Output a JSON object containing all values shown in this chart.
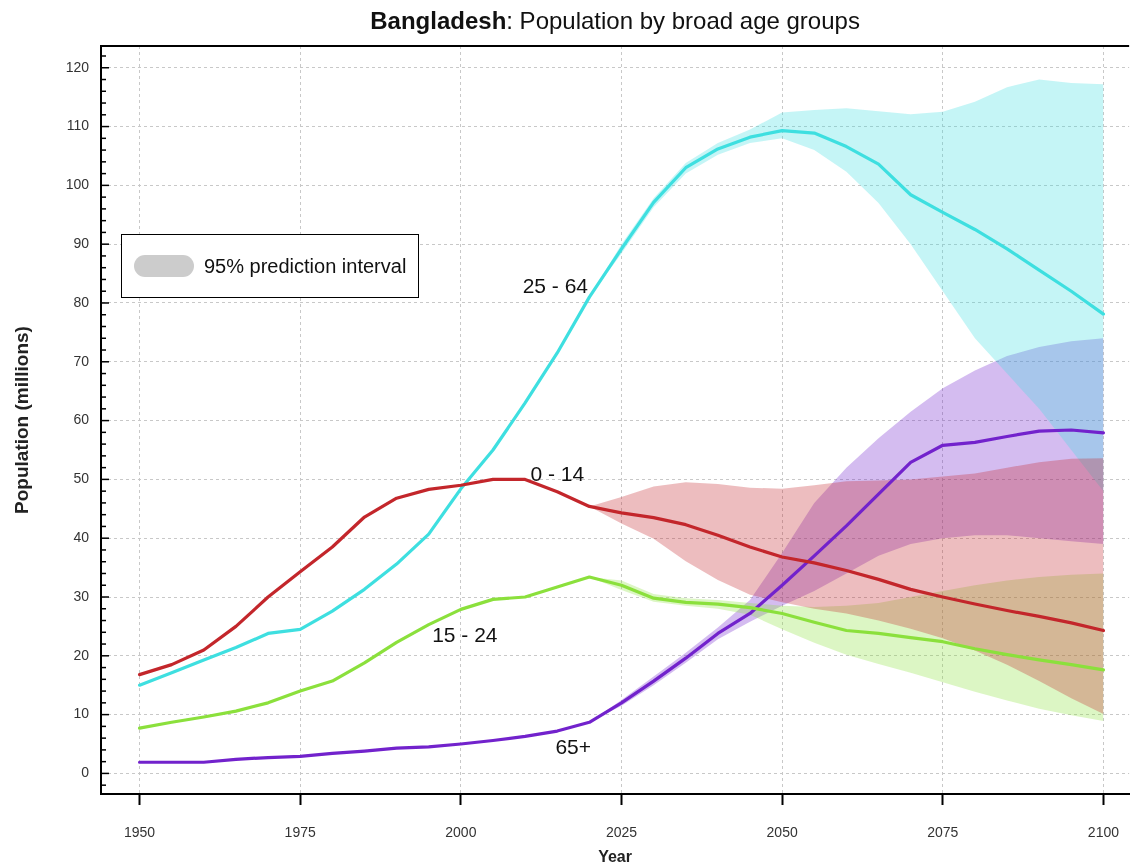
{
  "chart_data": {
    "type": "line",
    "title": "Bangladesh: Population by broad age groups",
    "xlabel": "Year",
    "ylabel": "Population (millions)",
    "x": [
      1950,
      1955,
      1960,
      1965,
      1970,
      1975,
      1980,
      1985,
      1990,
      1995,
      2000,
      2005,
      2010,
      2015,
      2020,
      2025,
      2030,
      2035,
      2040,
      2045,
      2050,
      2055,
      2060,
      2065,
      2070,
      2075,
      2080,
      2085,
      2090,
      2095,
      2100
    ],
    "series": [
      {
        "name": "0 - 14",
        "color": "#c3262b",
        "values": [
          16.8,
          18.5,
          21,
          25,
          30,
          34.3,
          38.5,
          43.6,
          46.8,
          48.3,
          49,
          50,
          50,
          47.9,
          45.4,
          44.3,
          43.5,
          42.3,
          40.5,
          38.5,
          36.8,
          35.8,
          34.5,
          33,
          31.3,
          30,
          28.8,
          27.7,
          26.7,
          25.6,
          24.3
        ],
        "upper": [
          null,
          null,
          null,
          null,
          null,
          null,
          null,
          null,
          null,
          null,
          null,
          null,
          null,
          null,
          45.4,
          47,
          48.8,
          49.5,
          49.2,
          48.6,
          48.4,
          49,
          49.7,
          49.8,
          50,
          50.5,
          51,
          52,
          52.9,
          53.5,
          53.6
        ],
        "lower": [
          null,
          null,
          null,
          null,
          null,
          null,
          null,
          null,
          null,
          null,
          null,
          null,
          null,
          null,
          45.4,
          42.5,
          39.9,
          36.1,
          32.9,
          30.4,
          29.1,
          28,
          27.2,
          26,
          24.6,
          23,
          20.9,
          18.5,
          15.7,
          12.8,
          10.1
        ]
      },
      {
        "name": "15 - 24",
        "color": "#8be03c",
        "values": [
          7.7,
          8.7,
          9.6,
          10.6,
          12,
          14,
          15.7,
          18.8,
          22.3,
          25.3,
          27.9,
          29.6,
          30,
          31.7,
          33.4,
          32,
          29.8,
          29.1,
          28.8,
          28.2,
          27.2,
          25.7,
          24.3,
          23.8,
          23.1,
          22.4,
          21.2,
          20.2,
          19.3,
          18.5,
          17.6
        ],
        "upper": [
          null,
          null,
          null,
          null,
          null,
          null,
          null,
          null,
          null,
          null,
          null,
          null,
          null,
          null,
          33.4,
          32.8,
          30.5,
          29.8,
          29.5,
          29,
          28.5,
          28.3,
          28.5,
          29,
          30,
          31,
          32,
          32.8,
          33.4,
          33.8,
          34
        ],
        "lower": [
          null,
          null,
          null,
          null,
          null,
          null,
          null,
          null,
          null,
          null,
          null,
          null,
          null,
          null,
          33.4,
          31.2,
          29.2,
          28.5,
          28,
          27,
          24.5,
          22.2,
          20.2,
          18.6,
          17.1,
          15.5,
          13.9,
          12.4,
          11,
          9.9,
          8.9
        ]
      },
      {
        "name": "25 - 64",
        "color": "#3edfe0",
        "values": [
          15,
          17.1,
          19.3,
          21.4,
          23.8,
          24.5,
          27.6,
          31.3,
          35.6,
          40.7,
          48.4,
          55,
          63,
          71.5,
          81,
          89.2,
          97.1,
          103,
          106.2,
          108.2,
          109.3,
          108.9,
          106.6,
          103.6,
          98.4,
          95.4,
          92.5,
          89.2,
          85.6,
          82,
          78.1
        ],
        "upper": [
          null,
          null,
          null,
          null,
          null,
          null,
          null,
          null,
          null,
          null,
          null,
          null,
          null,
          null,
          81,
          90,
          97.8,
          103.8,
          107.2,
          109.5,
          112.4,
          112.8,
          113.1,
          112.6,
          112.1,
          112.5,
          114.2,
          116.7,
          118,
          117.4,
          117.2
        ],
        "lower": [
          null,
          null,
          null,
          null,
          null,
          null,
          null,
          null,
          null,
          null,
          null,
          null,
          null,
          null,
          81,
          88.4,
          96.3,
          102,
          105.2,
          107.2,
          108,
          106,
          102.3,
          97,
          90,
          82,
          74,
          68,
          62,
          55,
          48
        ]
      },
      {
        "name": "65+",
        "color": "#7222cc",
        "values": [
          1.9,
          1.9,
          1.9,
          2.4,
          2.7,
          2.9,
          3.4,
          3.8,
          4.3,
          4.5,
          5,
          5.6,
          6.3,
          7.2,
          8.7,
          12,
          15.7,
          19.6,
          23.8,
          27.2,
          32,
          37,
          42.1,
          47.5,
          52.9,
          55.8,
          56.3,
          57.3,
          58.2,
          58.4,
          57.9
        ],
        "upper": [
          null,
          null,
          null,
          null,
          null,
          null,
          null,
          null,
          null,
          null,
          null,
          null,
          null,
          null,
          8.7,
          12.5,
          16.5,
          20.5,
          24.8,
          29.5,
          37.5,
          46,
          52,
          57,
          61.5,
          65.5,
          68.5,
          71,
          72.5,
          73.5,
          74
        ],
        "lower": [
          null,
          null,
          null,
          null,
          null,
          null,
          null,
          null,
          null,
          null,
          null,
          null,
          null,
          null,
          8.7,
          11.5,
          15,
          18.8,
          22.8,
          25.8,
          28.5,
          31,
          34,
          37,
          39,
          40,
          40.5,
          40.5,
          40,
          39.5,
          39
        ]
      }
    ],
    "xlim": [
      1944,
      2104
    ],
    "xticks": [
      1950,
      1975,
      2000,
      2025,
      2050,
      2075,
      2100
    ],
    "ylim": [
      -3.5,
      123.7
    ],
    "yticks": [
      {
        "value": -2,
        "label": null
      },
      0,
      {
        "value": 2,
        "label": null
      },
      {
        "value": 4,
        "label": null
      },
      {
        "value": 6,
        "label": null
      },
      {
        "value": 8,
        "label": null
      },
      10,
      {
        "value": 12,
        "label": null
      },
      {
        "value": 14,
        "label": null
      },
      {
        "value": 16,
        "label": null
      },
      {
        "value": 18,
        "label": null
      },
      20,
      {
        "value": 22,
        "label": null
      },
      {
        "value": 24,
        "label": null
      },
      {
        "value": 26,
        "label": null
      },
      {
        "value": 28,
        "label": null
      },
      30,
      {
        "value": 32,
        "label": null
      },
      {
        "value": 34,
        "label": null
      },
      {
        "value": 36,
        "label": null
      },
      {
        "value": 38,
        "label": null
      },
      40,
      {
        "value": 42,
        "label": null
      },
      {
        "value": 44,
        "label": null
      },
      {
        "value": 46,
        "label": null
      },
      {
        "value": 48,
        "label": null
      },
      50,
      {
        "value": 52,
        "label": null
      },
      {
        "value": 54,
        "label": null
      },
      {
        "value": 56,
        "label": null
      },
      {
        "value": 58,
        "label": null
      },
      60,
      {
        "value": 62,
        "label": null
      },
      {
        "value": 64,
        "label": null
      },
      {
        "value": 66,
        "label": null
      },
      {
        "value": 68,
        "label": null
      },
      70,
      {
        "value": 72,
        "label": null
      },
      {
        "value": 74,
        "label": null
      },
      {
        "value": 76,
        "label": null
      },
      {
        "value": 78,
        "label": null
      },
      80,
      {
        "value": 82,
        "label": null
      },
      {
        "value": 84,
        "label": null
      },
      {
        "value": 86,
        "label": null
      },
      {
        "value": 88,
        "label": null
      },
      90,
      {
        "value": 92,
        "label": null
      },
      {
        "value": 94,
        "label": null
      },
      {
        "value": 96,
        "label": null
      },
      {
        "value": 98,
        "label": null
      },
      100,
      {
        "value": 102,
        "label": null
      },
      {
        "value": 104,
        "label": null
      },
      {
        "value": 106,
        "label": null
      },
      {
        "value": 108,
        "label": null
      },
      110,
      {
        "value": 112,
        "label": null
      },
      {
        "value": 114,
        "label": null
      },
      {
        "value": 116,
        "label": null
      },
      {
        "value": 118,
        "label": null
      },
      120,
      {
        "value": 122,
        "label": null
      }
    ],
    "grid": true,
    "annotations": [
      "95% prediction interval"
    ]
  }
}
